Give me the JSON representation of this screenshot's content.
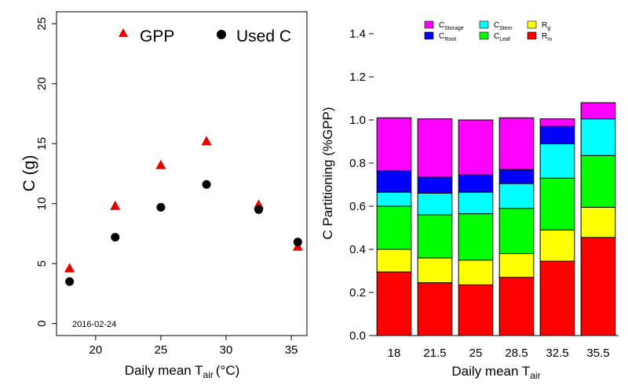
{
  "chart_data": [
    {
      "type": "scatter",
      "xlabel_prefix": "Daily mean T",
      "xlabel_sub": "air",
      "xlabel_unit": "(°C)",
      "ylabel": "C (g)",
      "xlim": [
        17,
        36.2
      ],
      "ylim": [
        -1,
        26
      ],
      "xticks": [
        20,
        25,
        30,
        35
      ],
      "yticks": [
        0,
        5,
        10,
        15,
        20,
        25
      ],
      "annotation": "2016-02-24",
      "legend_placement": "top-right",
      "series": [
        {
          "name": "GPP",
          "marker": "triangle",
          "color": "#e60000",
          "points": [
            [
              18,
              4.6
            ],
            [
              21.5,
              9.8
            ],
            [
              25,
              13.2
            ],
            [
              28.5,
              15.2
            ],
            [
              32.5,
              9.9
            ],
            [
              35.5,
              6.4
            ]
          ]
        },
        {
          "name": "Used C",
          "marker": "circle",
          "color": "#000000",
          "points": [
            [
              18,
              3.5
            ],
            [
              21.5,
              7.2
            ],
            [
              25,
              9.7
            ],
            [
              28.5,
              11.6
            ],
            [
              32.5,
              9.5
            ],
            [
              35.5,
              6.8
            ]
          ]
        }
      ]
    },
    {
      "type": "bar",
      "stacked": true,
      "categories": [
        "18",
        "21.5",
        "25",
        "28.5",
        "32.5",
        "35.5"
      ],
      "xlabel_prefix": "Daily mean T",
      "xlabel_sub": "air",
      "ylabel": "C Partitioning (%GPP)",
      "ylim": [
        0,
        1.4
      ],
      "yticks": [
        "0.0",
        "0.2",
        "0.4",
        "0.6",
        "0.8",
        "1.0",
        "1.2",
        "1.4"
      ],
      "legend_placement": "top",
      "legend": [
        {
          "main": "C",
          "sub": "Storage",
          "color": "#ff00ff"
        },
        {
          "main": "C",
          "sub": "Root",
          "color": "#0000ff"
        },
        {
          "main": "C",
          "sub": "Stem",
          "color": "#00ffff"
        },
        {
          "main": "C",
          "sub": "Leaf",
          "color": "#00ff00"
        },
        {
          "main": "R",
          "sub": "g",
          "color": "#ffff00"
        },
        {
          "main": "R",
          "sub": "m",
          "color": "#ff0000"
        }
      ],
      "series": [
        {
          "name": "Rm",
          "color": "#ff0000",
          "values": [
            0.295,
            0.245,
            0.235,
            0.27,
            0.345,
            0.455
          ]
        },
        {
          "name": "Rg",
          "color": "#ffff00",
          "values": [
            0.105,
            0.115,
            0.115,
            0.11,
            0.145,
            0.14
          ]
        },
        {
          "name": "CLeaf",
          "color": "#00ff00",
          "values": [
            0.2,
            0.2,
            0.215,
            0.21,
            0.24,
            0.24
          ]
        },
        {
          "name": "CStem",
          "color": "#00ffff",
          "values": [
            0.065,
            0.1,
            0.1,
            0.115,
            0.16,
            0.17
          ]
        },
        {
          "name": "CRoot",
          "color": "#0000ff",
          "values": [
            0.1,
            0.075,
            0.08,
            0.065,
            0.08,
            0.0
          ]
        },
        {
          "name": "CStorage",
          "color": "#ff00ff",
          "values": [
            0.245,
            0.27,
            0.255,
            0.24,
            0.035,
            0.075
          ]
        }
      ]
    }
  ]
}
